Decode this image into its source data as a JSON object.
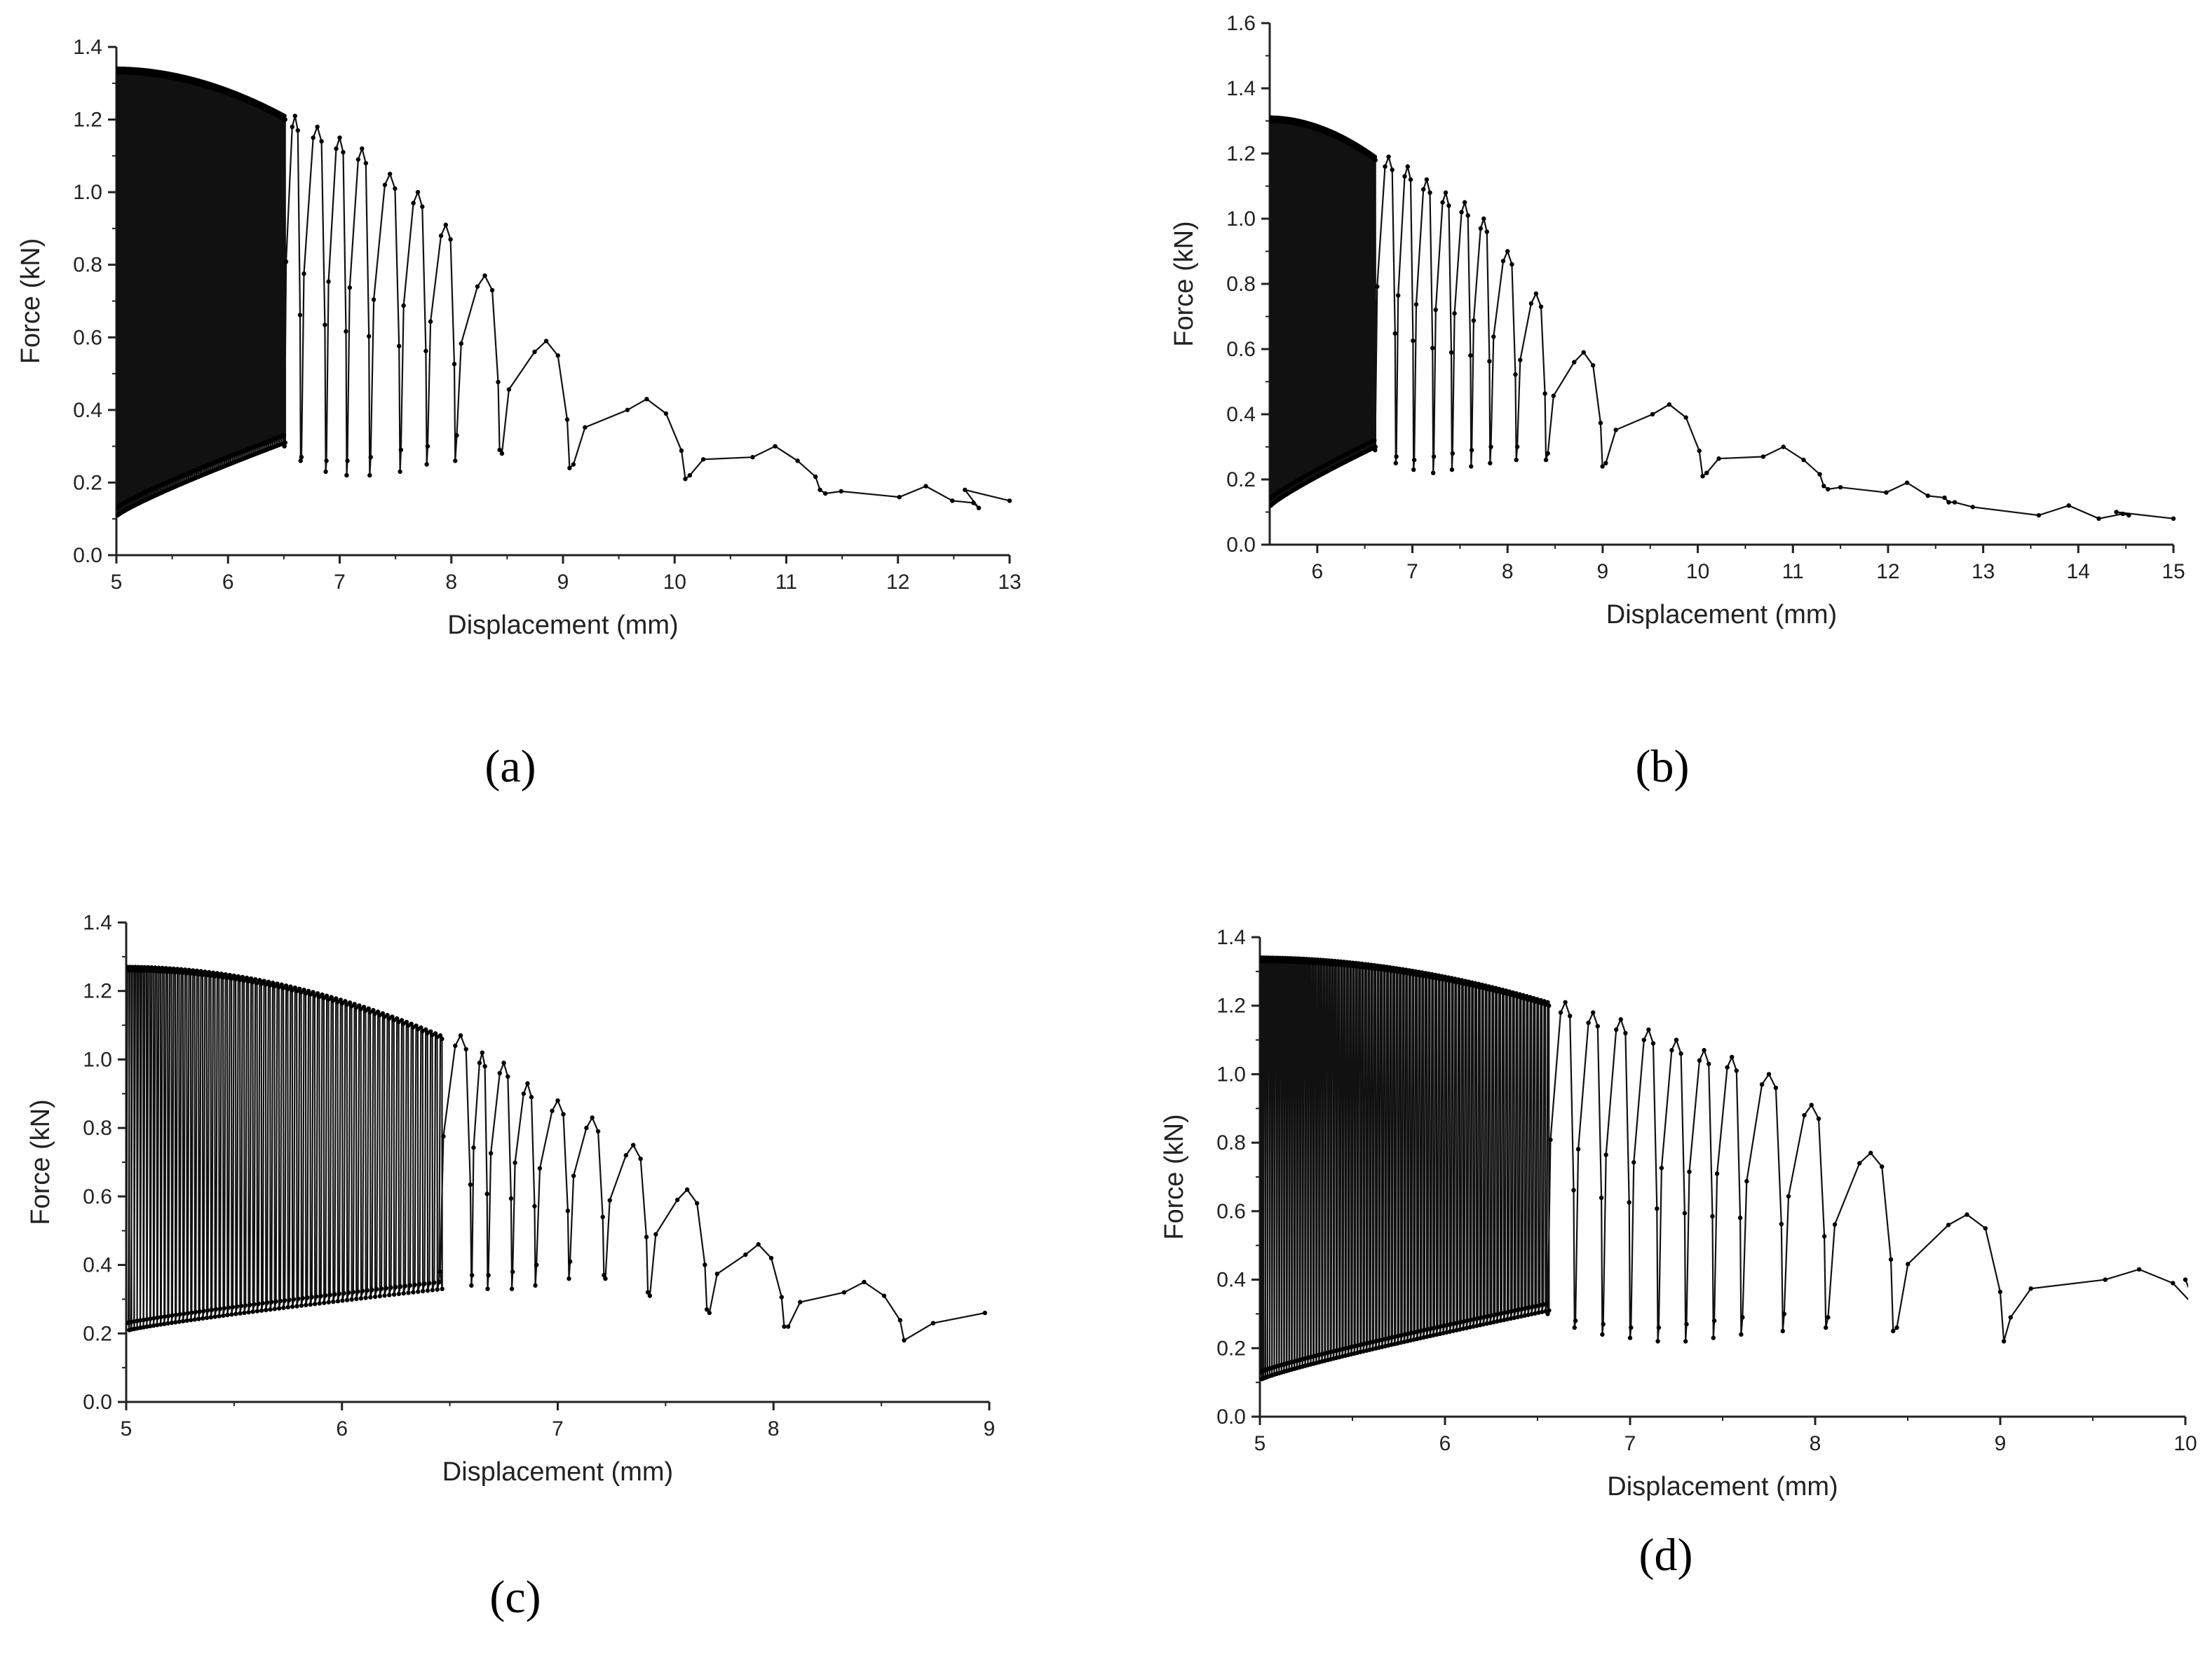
{
  "chart_data": [
    {
      "type": "line",
      "panel_label": "(a)",
      "xlabel": "Displacement (mm)",
      "ylabel": "Force (kN)",
      "xlim": [
        5,
        13
      ],
      "ylim": [
        0.0,
        1.4
      ],
      "xticks": [
        "5",
        "6",
        "7",
        "8",
        "9",
        "10",
        "11",
        "12",
        "13"
      ],
      "yticks": [
        "0.0",
        "0.2",
        "0.4",
        "0.6",
        "0.8",
        "1.0",
        "1.2",
        "1.4"
      ],
      "cycles": {
        "start_x": 5.0,
        "n_dense": 90,
        "dense_end_x": 6.5,
        "upper_start": 1.34,
        "lower_start": 0.11,
        "lower_growth": 0.2,
        "peaks": [
          {
            "x": 6.6,
            "upper": 1.21,
            "lower": 0.26
          },
          {
            "x": 6.8,
            "upper": 1.18,
            "lower": 0.23
          },
          {
            "x": 7.0,
            "upper": 1.15,
            "lower": 0.22
          },
          {
            "x": 7.2,
            "upper": 1.12,
            "lower": 0.22
          },
          {
            "x": 7.45,
            "upper": 1.05,
            "lower": 0.23
          },
          {
            "x": 7.7,
            "upper": 1.0,
            "lower": 0.25
          },
          {
            "x": 7.95,
            "upper": 0.91,
            "lower": 0.26
          },
          {
            "x": 8.3,
            "upper": 0.77,
            "lower": 0.29
          },
          {
            "x": 8.85,
            "upper": 0.59,
            "lower": 0.24
          },
          {
            "x": 9.75,
            "upper": 0.43,
            "lower": 0.21
          },
          {
            "x": 10.9,
            "upper": 0.3,
            "lower": 0.18
          },
          {
            "x": 12.25,
            "upper": 0.19,
            "lower": 0.13
          }
        ],
        "tail": [
          [
            12.6,
            0.18
          ],
          [
            13.0,
            0.15
          ]
        ]
      }
    },
    {
      "type": "line",
      "panel_label": "(b)",
      "xlabel": "Displacement (mm)",
      "ylabel": "Force (kN)",
      "xlim": [
        5.5,
        15
      ],
      "ylim": [
        0.0,
        1.6
      ],
      "xticks": [
        "6",
        "7",
        "8",
        "9",
        "10",
        "11",
        "12",
        "13",
        "14",
        "15"
      ],
      "yticks": [
        "0.0",
        "0.2",
        "0.4",
        "0.6",
        "0.8",
        "1.0",
        "1.2",
        "1.4",
        "1.6"
      ],
      "cycles": {
        "start_x": 5.5,
        "n_dense": 70,
        "dense_end_x": 6.6,
        "upper_start": 1.31,
        "lower_start": 0.12,
        "lower_growth": 0.18,
        "peaks": [
          {
            "x": 6.75,
            "upper": 1.19,
            "lower": 0.25
          },
          {
            "x": 6.95,
            "upper": 1.16,
            "lower": 0.23
          },
          {
            "x": 7.15,
            "upper": 1.12,
            "lower": 0.22
          },
          {
            "x": 7.35,
            "upper": 1.08,
            "lower": 0.23
          },
          {
            "x": 7.55,
            "upper": 1.05,
            "lower": 0.24
          },
          {
            "x": 7.75,
            "upper": 1.0,
            "lower": 0.25
          },
          {
            "x": 8.0,
            "upper": 0.9,
            "lower": 0.26
          },
          {
            "x": 8.3,
            "upper": 0.77,
            "lower": 0.26
          },
          {
            "x": 8.8,
            "upper": 0.59,
            "lower": 0.24
          },
          {
            "x": 9.7,
            "upper": 0.43,
            "lower": 0.21
          },
          {
            "x": 10.9,
            "upper": 0.3,
            "lower": 0.18
          },
          {
            "x": 12.2,
            "upper": 0.19,
            "lower": 0.13
          },
          {
            "x": 13.9,
            "upper": 0.12,
            "lower": 0.09
          }
        ],
        "tail": [
          [
            14.4,
            0.1
          ],
          [
            15.0,
            0.08
          ]
        ]
      }
    },
    {
      "type": "line",
      "panel_label": "(c)",
      "xlabel": "Displacement (mm)",
      "ylabel": "Force (kN)",
      "xlim": [
        5,
        9
      ],
      "ylim": [
        0.0,
        1.4
      ],
      "xticks": [
        "5",
        "6",
        "7",
        "8",
        "9"
      ],
      "yticks": [
        "0.0",
        "0.2",
        "0.4",
        "0.6",
        "0.8",
        "1.0",
        "1.2",
        "1.4"
      ],
      "cycles": {
        "start_x": 5.0,
        "n_dense": 75,
        "dense_end_x": 6.45,
        "upper_start": 1.27,
        "lower_start": 0.21,
        "lower_growth": 0.12,
        "peaks": [
          {
            "x": 6.55,
            "upper": 1.07,
            "lower": 0.34
          },
          {
            "x": 6.65,
            "upper": 1.02,
            "lower": 0.33
          },
          {
            "x": 6.75,
            "upper": 0.99,
            "lower": 0.33
          },
          {
            "x": 6.86,
            "upper": 0.93,
            "lower": 0.34
          },
          {
            "x": 7.0,
            "upper": 0.88,
            "lower": 0.36
          },
          {
            "x": 7.16,
            "upper": 0.83,
            "lower": 0.37
          },
          {
            "x": 7.35,
            "upper": 0.75,
            "lower": 0.32
          },
          {
            "x": 7.6,
            "upper": 0.62,
            "lower": 0.27
          },
          {
            "x": 7.93,
            "upper": 0.46,
            "lower": 0.22
          },
          {
            "x": 8.42,
            "upper": 0.35,
            "lower": 0.18
          }
        ],
        "tail": [
          [
            8.74,
            0.23
          ],
          [
            8.98,
            0.26
          ]
        ]
      }
    },
    {
      "type": "line",
      "panel_label": "(d)",
      "xlabel": "Displacement (mm)",
      "ylabel": "Force (kN)",
      "xlim": [
        5,
        10
      ],
      "ylim": [
        0.0,
        1.4
      ],
      "xticks": [
        "5",
        "6",
        "7",
        "8",
        "9",
        "10"
      ],
      "yticks": [
        "0.0",
        "0.2",
        "0.4",
        "0.6",
        "0.8",
        "1.0",
        "1.2",
        "1.4"
      ],
      "cycles": {
        "start_x": 5.0,
        "n_dense": 95,
        "dense_end_x": 6.55,
        "upper_start": 1.34,
        "lower_start": 0.11,
        "lower_growth": 0.2,
        "peaks": [
          {
            "x": 6.65,
            "upper": 1.21,
            "lower": 0.26
          },
          {
            "x": 6.8,
            "upper": 1.18,
            "lower": 0.24
          },
          {
            "x": 6.95,
            "upper": 1.16,
            "lower": 0.23
          },
          {
            "x": 7.1,
            "upper": 1.13,
            "lower": 0.22
          },
          {
            "x": 7.25,
            "upper": 1.1,
            "lower": 0.22
          },
          {
            "x": 7.4,
            "upper": 1.07,
            "lower": 0.23
          },
          {
            "x": 7.55,
            "upper": 1.05,
            "lower": 0.24
          },
          {
            "x": 7.75,
            "upper": 1.0,
            "lower": 0.25
          },
          {
            "x": 7.98,
            "upper": 0.91,
            "lower": 0.26
          },
          {
            "x": 8.3,
            "upper": 0.77,
            "lower": 0.25
          },
          {
            "x": 8.82,
            "upper": 0.59,
            "lower": 0.22
          },
          {
            "x": 9.75,
            "upper": 0.43,
            "lower": 0.25
          }
        ],
        "tail": [
          [
            10.0,
            0.4
          ]
        ]
      }
    }
  ]
}
